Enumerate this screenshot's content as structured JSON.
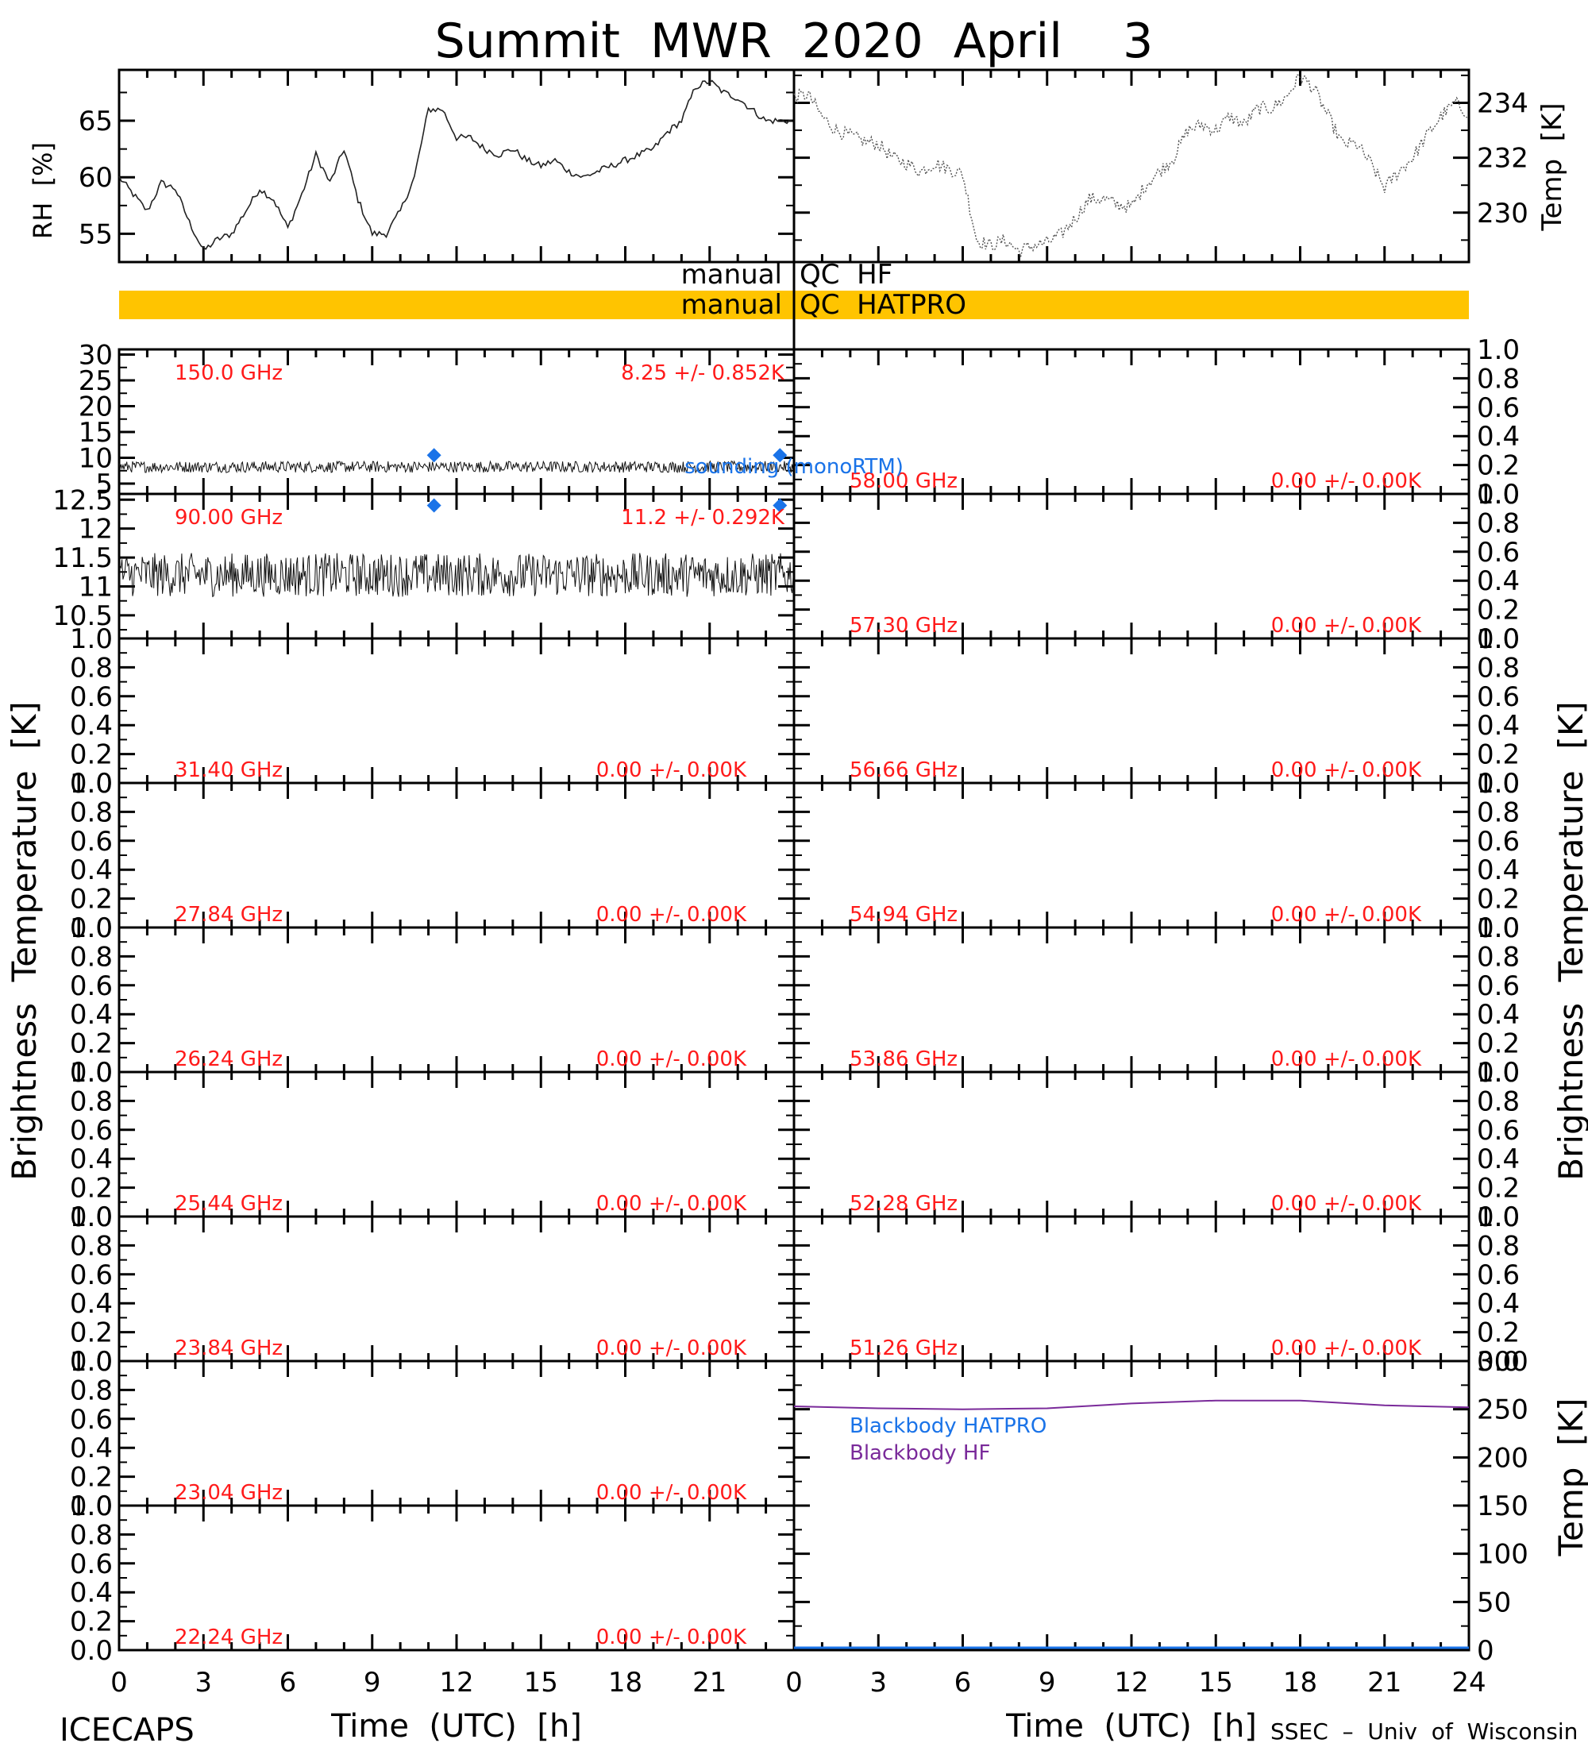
{
  "title": "Summit  MWR  2020  April    3",
  "colors": {
    "qc_bar": "#ffc400",
    "freq_label": "#ff1a1a",
    "marker": "#1a73e8",
    "hf_line": "#7a2a9a"
  },
  "footer": {
    "left": "ICECAPS",
    "right": "SSEC  –  Univ  of  Wisconsin",
    "xlabel_left": "Time  (UTC)  [h]",
    "xlabel_right": "Time  (UTC)  [h]"
  },
  "qc": {
    "row1_left": "manual",
    "row1_right": "QC  HF",
    "row2_left": "manual",
    "row2_right": "QC  HATPRO"
  },
  "axis_titles": {
    "rh": "RH  [%]",
    "temp": "Temp  [K]",
    "bt_left": "Brightness  Temperature  [K]",
    "bt_right": "Brightness  Temperature  [K]",
    "bb_temp": "Temp  [K]"
  },
  "legend": {
    "sounding": "sounding  (monoRTM)",
    "bb_hatpro": "Blackbody  HATPRO",
    "bb_hf": "Blackbody  HF"
  },
  "chart_data": [
    {
      "id": "rh",
      "type": "line",
      "xlabel": "",
      "ylabel": "RH  [%]",
      "xlim": [
        0,
        24
      ],
      "ylim": [
        52.5,
        69.5
      ],
      "yticks": [
        55,
        60,
        65
      ],
      "x": [
        0,
        0.5,
        1,
        1.5,
        2,
        2.5,
        3,
        3.5,
        4,
        4.5,
        5,
        5.5,
        6,
        6.5,
        7,
        7.5,
        8,
        8.5,
        9,
        9.5,
        10,
        10.5,
        11,
        11.5,
        12,
        12.5,
        13,
        13.5,
        14,
        14.5,
        15,
        15.5,
        16,
        16.5,
        17,
        17.5,
        18,
        18.5,
        19,
        19.5,
        20,
        20.5,
        21,
        21.5,
        22,
        22.5,
        23,
        23.5,
        24
      ],
      "y": [
        60,
        58.5,
        57,
        59.5,
        59,
        56,
        53.5,
        54.5,
        55,
        57,
        59,
        58,
        55.5,
        58.5,
        62,
        59.5,
        62.5,
        58,
        55,
        55,
        57,
        60,
        66,
        66,
        63.5,
        63.5,
        62.5,
        62,
        62.5,
        61.5,
        61,
        61.5,
        60.5,
        60,
        60.5,
        61,
        61.5,
        62,
        62.5,
        64,
        65,
        68,
        68.5,
        67.5,
        67,
        66,
        65,
        65,
        65
      ]
    },
    {
      "id": "surface-temp",
      "type": "line",
      "xlabel": "",
      "ylabel": "Temp  [K]",
      "xlim": [
        0,
        24
      ],
      "ylim": [
        228.2,
        235.2
      ],
      "yticks": [
        230,
        232,
        234
      ],
      "x": [
        0,
        0.5,
        1,
        1.5,
        2,
        2.5,
        3,
        3.5,
        4,
        4.5,
        5,
        5.5,
        6,
        6.5,
        7,
        7.5,
        8,
        8.5,
        9,
        9.5,
        10,
        10.5,
        11,
        11.5,
        12,
        12.5,
        13,
        13.5,
        14,
        14.5,
        15,
        15.5,
        16,
        16.5,
        17,
        17.5,
        18,
        18.5,
        19,
        19.5,
        20,
        20.5,
        21,
        21.5,
        22,
        22.5,
        23,
        23.5,
        24
      ],
      "y": [
        234.2,
        234.3,
        233.5,
        233,
        232.8,
        232.6,
        232.5,
        232,
        231.8,
        231.5,
        231.8,
        231.6,
        231.4,
        229,
        228.8,
        229,
        228.6,
        228.8,
        228.9,
        229.2,
        229.8,
        230.5,
        230.5,
        230.3,
        230.2,
        231,
        231.5,
        232,
        233,
        233.2,
        233,
        233.5,
        233.2,
        233.8,
        233.8,
        234.2,
        235,
        234.5,
        233.5,
        232.5,
        232.5,
        231.8,
        230.9,
        231.5,
        232,
        232.8,
        233.5,
        234,
        233.6
      ]
    },
    {
      "id": "tb-150",
      "type": "line",
      "freq": "150.0  GHz",
      "stat": "8.25  +/-  0.852K",
      "xlim": [
        0,
        24
      ],
      "ylim": [
        3,
        31
      ],
      "yticks": [
        5,
        10,
        15,
        20,
        25,
        30
      ],
      "mean": 8.25,
      "sd": 0.852,
      "sounding_x": [
        11.2,
        23.5
      ],
      "sounding_y": [
        10.5,
        10.5
      ]
    },
    {
      "id": "tb-90",
      "type": "line",
      "freq": "90.00  GHz",
      "stat": "11.2  +/-  0.292K",
      "xlim": [
        0,
        24
      ],
      "ylim": [
        10.1,
        12.6
      ],
      "yticks": [
        10.5,
        11.0,
        11.5,
        12.0,
        12.5
      ],
      "mean": 11.2,
      "sd": 0.292,
      "sounding_x": [
        11.2,
        23.5
      ],
      "sounding_y": [
        12.4,
        12.4
      ]
    },
    {
      "id": "tb-31.40",
      "freq": "31.40  GHz",
      "stat": "0.00  +/-  0.00K",
      "ylim": [
        0,
        1
      ]
    },
    {
      "id": "tb-27.84",
      "freq": "27.84  GHz",
      "stat": "0.00  +/-  0.00K",
      "ylim": [
        0,
        1
      ]
    },
    {
      "id": "tb-26.24",
      "freq": "26.24  GHz",
      "stat": "0.00  +/-  0.00K",
      "ylim": [
        0,
        1
      ]
    },
    {
      "id": "tb-25.44",
      "freq": "25.44  GHz",
      "stat": "0.00  +/-  0.00K",
      "ylim": [
        0,
        1
      ]
    },
    {
      "id": "tb-23.84",
      "freq": "23.84  GHz",
      "stat": "0.00  +/-  0.00K",
      "ylim": [
        0,
        1
      ]
    },
    {
      "id": "tb-23.04",
      "freq": "23.04  GHz",
      "stat": "0.00  +/-  0.00K",
      "ylim": [
        0,
        1
      ]
    },
    {
      "id": "tb-22.24",
      "freq": "22.24  GHz",
      "stat": "0.00  +/-  0.00K",
      "ylim": [
        0,
        1
      ]
    },
    {
      "id": "tb-58.00",
      "freq": "58.00  GHz",
      "stat": "0.00  +/-  0.00K",
      "ylim": [
        0,
        1
      ]
    },
    {
      "id": "tb-57.30",
      "freq": "57.30  GHz",
      "stat": "0.00  +/-  0.00K",
      "ylim": [
        0,
        1
      ]
    },
    {
      "id": "tb-56.66",
      "freq": "56.66  GHz",
      "stat": "0.00  +/-  0.00K",
      "ylim": [
        0,
        1
      ]
    },
    {
      "id": "tb-54.94",
      "freq": "54.94  GHz",
      "stat": "0.00  +/-  0.00K",
      "ylim": [
        0,
        1
      ]
    },
    {
      "id": "tb-53.86",
      "freq": "53.86  GHz",
      "stat": "0.00  +/-  0.00K",
      "ylim": [
        0,
        1
      ]
    },
    {
      "id": "tb-52.28",
      "freq": "52.28  GHz",
      "stat": "0.00  +/-  0.00K",
      "ylim": [
        0,
        1
      ]
    },
    {
      "id": "tb-51.26",
      "freq": "51.26  GHz",
      "stat": "0.00  +/-  0.00K",
      "ylim": [
        0,
        1
      ]
    },
    {
      "id": "blackbody",
      "type": "line",
      "xlabel": "Time  (UTC)  [h]",
      "ylabel": "Temp  [K]",
      "xlim": [
        0,
        24
      ],
      "ylim": [
        0,
        300
      ],
      "yticks": [
        0,
        50,
        100,
        150,
        200,
        250,
        300
      ],
      "series": [
        {
          "name": "Blackbody  HF",
          "x": [
            0,
            3,
            6,
            9,
            12,
            15,
            18,
            21,
            24
          ],
          "y": [
            253,
            251,
            250,
            251,
            256,
            259,
            259,
            254,
            252
          ]
        },
        {
          "name": "Blackbody  HATPRO",
          "x": [
            0,
            24
          ],
          "y": [
            0,
            0
          ]
        }
      ]
    }
  ],
  "yticks_unit": [
    "0.0",
    "0.2",
    "0.4",
    "0.6",
    "0.8",
    "1.0"
  ],
  "xticks": [
    "0",
    "3",
    "6",
    "9",
    "12",
    "15",
    "18",
    "21",
    "24"
  ],
  "xticks_left_labels": [
    "0",
    "3",
    "6",
    "9",
    "12",
    "15",
    "18",
    "21"
  ]
}
